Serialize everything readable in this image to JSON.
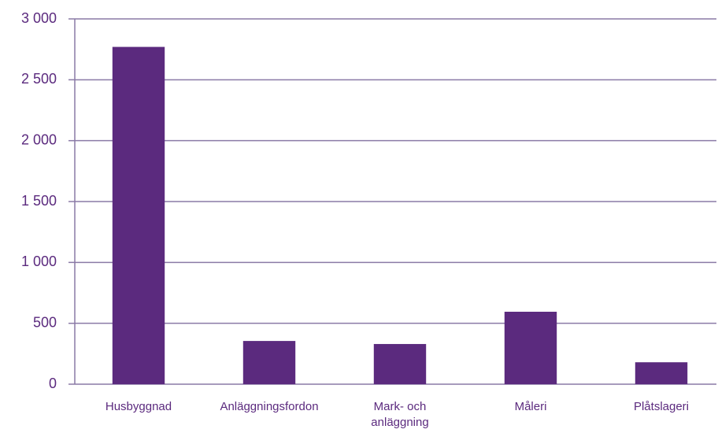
{
  "chart_data": {
    "type": "bar",
    "categories": [
      "Husbyggnad",
      "Anläggningsfordon",
      "Mark- och anläggning",
      "Måleri",
      "Plåtslageri"
    ],
    "values": [
      2770,
      355,
      330,
      595,
      180
    ],
    "color": "#5b2a7e",
    "ylim": [
      0,
      3000
    ],
    "yticks": [
      0,
      500,
      {
        "value": 1000,
        "label": "1 000"
      },
      {
        "value": 1500,
        "label": "1 500"
      },
      {
        "value": 2000,
        "label": "2 000"
      },
      {
        "value": 2500,
        "label": "2 500"
      },
      {
        "value": 3000,
        "label": "3 000"
      }
    ],
    "grid": true
  }
}
